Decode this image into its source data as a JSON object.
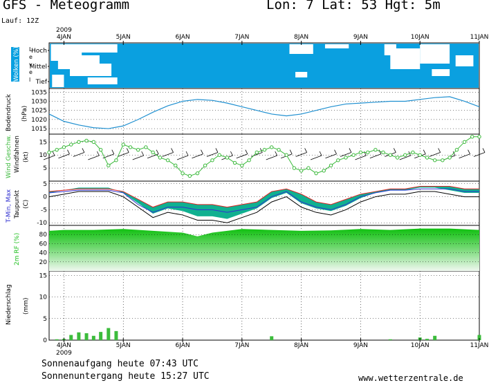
{
  "header": {
    "title": "GFS - Meteogramm",
    "location": "Lon: 7 Lat: 53 Hgt: 5m",
    "run": "Lauf: 12Z"
  },
  "footer": {
    "sunrise": "Sonnenaufgang heute 07:43 UTC",
    "sunset": "Sonnenuntergang heute 15:27 UTC",
    "website": "www.wetterzentrale.de"
  },
  "time_axis": {
    "year": "2009",
    "labels": [
      "4JAN",
      "5JAN",
      "6JAN",
      "7JAN",
      "8JAN",
      "9JAN",
      "10JAN",
      "11JAN"
    ]
  },
  "colors": {
    "cloud": "#0aa0e0",
    "pressure": "#1e8fd0",
    "wind": "#38b838",
    "humidity": "#20c020",
    "precip": "#3cbc3c",
    "tmin": "#3030d0",
    "tmax": "#e02020",
    "dewpoint_band": "#10b090"
  },
  "chart_data": [
    {
      "type": "heatmap",
      "title": "Wolken (%)",
      "ylabel": "Level",
      "levels": [
        "Hoch",
        "Mittel",
        "Tief"
      ],
      "x_range": [
        "4JAN",
        "11JAN"
      ],
      "coverage": "mostly overcast at low levels; clear gaps at high levels on 4JAN and 8JAN-10JAN"
    },
    {
      "type": "line",
      "title": "Bodendruck",
      "ylabel": "(hPa)",
      "yticks": [
        1015,
        1020,
        1025,
        1030,
        1035
      ],
      "ylim": [
        1012,
        1037
      ],
      "x": [
        3.75,
        4.0,
        4.25,
        4.5,
        4.75,
        5.0,
        5.25,
        5.5,
        5.75,
        6.0,
        6.25,
        6.5,
        6.75,
        7.0,
        7.25,
        7.5,
        7.75,
        8.0,
        8.25,
        8.5,
        8.75,
        9.0,
        9.25,
        9.5,
        9.75,
        10.0,
        10.25,
        10.5,
        10.75,
        11.0
      ],
      "series": [
        {
          "values": [
            1023,
            1019,
            1017,
            1015.5,
            1015,
            1016.5,
            1020,
            1024,
            1027.5,
            1030,
            1031,
            1030.5,
            1029,
            1027,
            1025,
            1023,
            1022,
            1023,
            1025,
            1027,
            1028.5,
            1029,
            1029.5,
            1030,
            1030,
            1031,
            1032,
            1032.5,
            1030,
            1027
          ]
        }
      ]
    },
    {
      "type": "line",
      "title": "Wind Geschw.",
      "subtitle": "Windfahnen",
      "ylabel": "(kt)",
      "yticks": [
        5,
        10,
        15
      ],
      "ylim": [
        0,
        18
      ],
      "x": [
        3.75,
        3.88,
        4.0,
        4.12,
        4.25,
        4.38,
        4.5,
        4.62,
        4.75,
        4.88,
        5.0,
        5.12,
        5.25,
        5.38,
        5.5,
        5.62,
        5.75,
        5.88,
        6.0,
        6.12,
        6.25,
        6.38,
        6.5,
        6.62,
        6.75,
        6.88,
        7.0,
        7.12,
        7.25,
        7.38,
        7.5,
        7.62,
        7.75,
        7.88,
        8.0,
        8.12,
        8.25,
        8.38,
        8.5,
        8.62,
        8.75,
        8.88,
        9.0,
        9.12,
        9.25,
        9.38,
        9.5,
        9.62,
        9.75,
        9.88,
        10.0,
        10.12,
        10.25,
        10.38,
        10.5,
        10.62,
        10.75,
        10.88,
        11.0
      ],
      "series": [
        {
          "values": [
            11,
            12,
            13,
            14,
            15,
            15.5,
            15,
            12,
            6,
            8,
            14,
            13,
            12,
            13,
            11,
            9,
            8,
            6,
            3,
            2,
            3,
            6,
            8,
            10,
            9,
            7,
            6,
            8,
            11,
            12,
            13,
            12,
            10,
            5,
            4,
            5,
            3,
            4,
            6,
            8,
            9,
            10,
            11,
            11,
            12,
            11,
            10,
            9,
            10,
            11,
            10,
            9,
            8,
            8,
            9,
            12,
            15,
            17,
            17
          ]
        }
      ]
    },
    {
      "type": "area",
      "title": "T-Min, Max",
      "subtitle": "Taupunkt",
      "ylabel": "(C)",
      "yticks": [
        -10,
        -5,
        0,
        5
      ],
      "ylim": [
        -11,
        6
      ],
      "x": [
        3.75,
        4.0,
        4.25,
        4.5,
        4.75,
        5.0,
        5.25,
        5.5,
        5.75,
        6.0,
        6.25,
        6.5,
        6.75,
        7.0,
        7.25,
        7.5,
        7.75,
        8.0,
        8.25,
        8.5,
        8.75,
        9.0,
        9.25,
        9.5,
        9.75,
        10.0,
        10.25,
        10.5,
        10.75,
        11.0
      ],
      "series": [
        {
          "name": "T-Max",
          "values": [
            2,
            2.5,
            3,
            3,
            3,
            2,
            -1,
            -4,
            -2,
            -2,
            -3,
            -3,
            -4,
            -3,
            -2,
            2,
            3,
            1,
            -2,
            -3,
            -1,
            1,
            2,
            3,
            3,
            4,
            4,
            4,
            3,
            3
          ]
        },
        {
          "name": "T-Min",
          "values": [
            1.5,
            2,
            2.5,
            2.5,
            2.5,
            1.5,
            -3,
            -6,
            -4,
            -4,
            -5,
            -5,
            -6,
            -5,
            -4,
            0,
            2,
            -2,
            -4,
            -5,
            -3,
            0,
            1.5,
            2.5,
            2.5,
            3,
            3,
            3,
            2,
            2
          ]
        },
        {
          "name": "Taupunkt",
          "values": [
            0,
            1,
            2,
            2,
            2,
            0,
            -4,
            -8,
            -6,
            -7,
            -9,
            -9,
            -10,
            -8,
            -6,
            -2,
            0,
            -4,
            -6,
            -7,
            -5,
            -2,
            0,
            1,
            1,
            2,
            2,
            1,
            0,
            0
          ]
        }
      ]
    },
    {
      "type": "area",
      "title": "2m RF (%)",
      "yticks": [
        20,
        40,
        60,
        80
      ],
      "ylim": [
        0,
        100
      ],
      "x": [
        3.75,
        4.0,
        4.5,
        5.0,
        5.5,
        6.0,
        6.25,
        6.5,
        7.0,
        7.5,
        8.0,
        8.5,
        9.0,
        9.5,
        10.0,
        10.5,
        11.0
      ],
      "series": [
        {
          "values": [
            88,
            90,
            90,
            92,
            88,
            84,
            76,
            84,
            92,
            90,
            88,
            89,
            92,
            90,
            93,
            93,
            90
          ]
        }
      ]
    },
    {
      "type": "bar",
      "title": "Niederschlag",
      "ylabel": "(mm)",
      "yticks": [
        0,
        5,
        10,
        15
      ],
      "ylim": [
        0,
        16
      ],
      "x": [
        3.88,
        4.0,
        4.12,
        4.25,
        4.38,
        4.5,
        4.62,
        4.75,
        4.88,
        7.5,
        9.5,
        10.0,
        10.12,
        10.25,
        11.0
      ],
      "values": [
        0.2,
        0.3,
        1.2,
        1.8,
        1.6,
        1.0,
        1.9,
        2.8,
        2.1,
        0.9,
        0.2,
        0.6,
        0.3,
        1.0,
        1.2
      ]
    }
  ]
}
